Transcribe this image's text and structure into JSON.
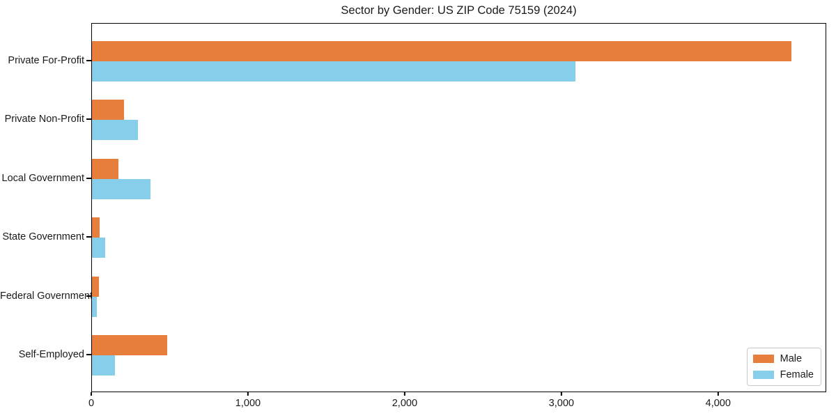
{
  "chart_data": {
    "type": "bar",
    "orientation": "horizontal",
    "title": "Sector by Gender: US ZIP Code 75159 (2024)",
    "xlabel": "",
    "ylabel": "",
    "categories": [
      "Private For-Profit",
      "Private Non-Profit",
      "Local Government",
      "State Government",
      "Federal Government",
      "Self-Employed"
    ],
    "series": [
      {
        "name": "Male",
        "color": "#E87E3B",
        "values": [
          4470,
          205,
          170,
          50,
          45,
          480
        ]
      },
      {
        "name": "Female",
        "color": "#87CEEB",
        "values": [
          3090,
          295,
          375,
          85,
          30,
          145
        ]
      }
    ],
    "xlim": [
      0,
      4690
    ],
    "xticks": [
      {
        "value": 0,
        "label": "0"
      },
      {
        "value": 1000,
        "label": "1,000"
      },
      {
        "value": 2000,
        "label": "2,000"
      },
      {
        "value": 3000,
        "label": "3,000"
      },
      {
        "value": 4000,
        "label": "4,000"
      }
    ],
    "grid": false,
    "legend_position": "lower right"
  },
  "colors": {
    "background": "#ffffff",
    "axis": "#000000",
    "text": "#1a1a1a",
    "legend_border": "#c9c9c9",
    "male": "#E87E3B",
    "female": "#87CEEB"
  }
}
